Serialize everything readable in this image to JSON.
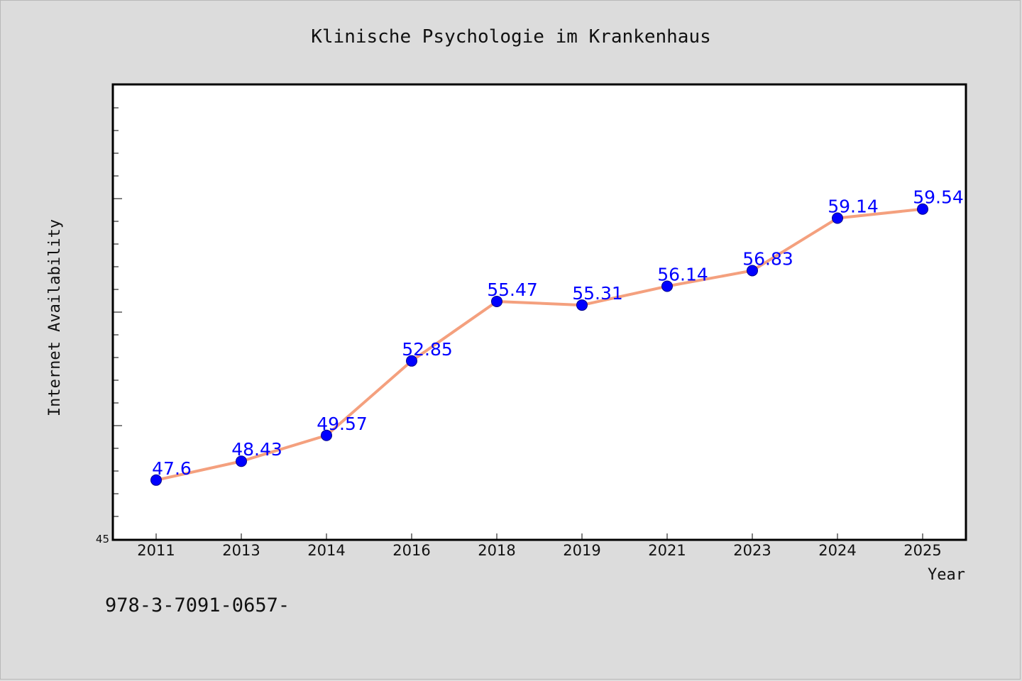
{
  "chart_data": {
    "type": "line",
    "title": "Klinische Psychologie im Krankenhaus",
    "xlabel": "Year",
    "ylabel": "Internet Availability",
    "categories": [
      "2011",
      "2013",
      "2014",
      "2016",
      "2018",
      "2019",
      "2021",
      "2023",
      "2024",
      "2025"
    ],
    "series": [
      {
        "values": [
          47.6,
          48.43,
          49.57,
          52.85,
          55.47,
          55.31,
          56.14,
          56.83,
          59.14,
          59.54
        ],
        "data_labels": [
          "47.6",
          "48.43",
          "49.57",
          "52.85",
          "55.47",
          "55.31",
          "56.14",
          "56.83",
          "59.14",
          "59.54"
        ]
      }
    ],
    "ylim": [
      45,
      65
    ],
    "y_tick_labels": [
      "45"
    ],
    "line_color": "#f4a07e",
    "marker_color": "#0000ff",
    "data_label_color": "#0000ff",
    "grid": false
  },
  "footer": {
    "isbn_text": "978-3-7091-0657-"
  }
}
